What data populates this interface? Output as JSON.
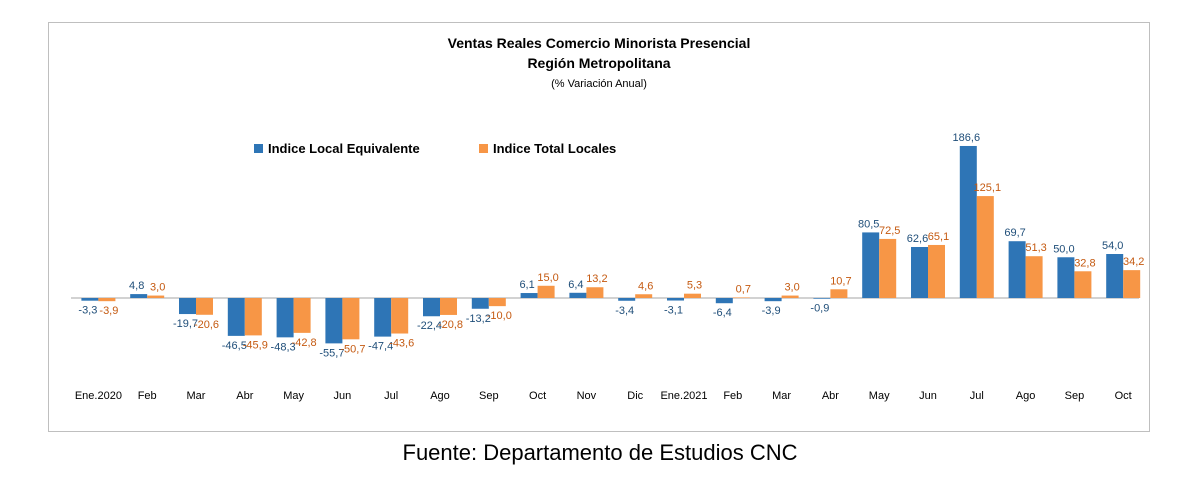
{
  "colors": {
    "series1": "#2E75B6",
    "series2": "#F79646",
    "axis": "#A6A6A6",
    "series1_label": "#1F4E79",
    "series2_label": "#C55A11"
  },
  "source": "Fuente: Departamento de Estudios CNC",
  "chart_data": {
    "type": "bar",
    "title": "Ventas Reales Comercio Minorista Presencial",
    "subtitle": "Región Metropolitana",
    "subtitle2": "(% Variación Anual)",
    "categories": [
      "Ene.2020",
      "Feb",
      "Mar",
      "Abr",
      "May",
      "Jun",
      "Jul",
      "Ago",
      "Sep",
      "Oct",
      "Nov",
      "Dic",
      "Ene.2021",
      "Feb",
      "Mar",
      "Abr",
      "May",
      "Jun",
      "Jul",
      "Ago",
      "Sep",
      "Oct"
    ],
    "series": [
      {
        "name": "Indice Local Equivalente",
        "values": [
          -3.3,
          4.8,
          -19.7,
          -46.5,
          -48.3,
          -55.7,
          -47.4,
          -22.4,
          -13.2,
          6.1,
          6.4,
          -3.4,
          -3.1,
          -6.4,
          -3.9,
          -0.9,
          80.5,
          62.6,
          186.6,
          69.7,
          50.0,
          54.0
        ],
        "labels": [
          "-3,3",
          "4,8",
          "-19,7",
          "-46,5",
          "-48,3",
          "-55,7",
          "-47,4",
          "-22,4",
          "-13,2",
          "6,1",
          "6,4",
          "-3,4",
          "-3,1",
          "-6,4",
          "-3,9",
          "-0,9",
          "80,5",
          "62,6",
          "186,6",
          "69,7",
          "50,0",
          "54,0"
        ]
      },
      {
        "name": "Indice Total Locales",
        "values": [
          -3.9,
          3.0,
          -20.6,
          -45.9,
          -42.8,
          -50.7,
          -43.6,
          -20.8,
          -10.0,
          15.0,
          13.2,
          4.6,
          5.3,
          0.7,
          3.0,
          10.7,
          72.5,
          65.1,
          125.1,
          51.3,
          32.8,
          34.2
        ],
        "labels": [
          "-3,9",
          "3,0",
          "-20,6",
          "-45,9",
          "-42,8",
          "-50,7",
          "-43,6",
          "-20,8",
          "-10,0",
          "15,0",
          "13,2",
          "4,6",
          "5,3",
          "0,7",
          "3,0",
          "10,7",
          "72,5",
          "65,1",
          "125,1",
          "51,3",
          "32,8",
          "34,2"
        ]
      }
    ],
    "legend": "top-left",
    "grid": false
  }
}
